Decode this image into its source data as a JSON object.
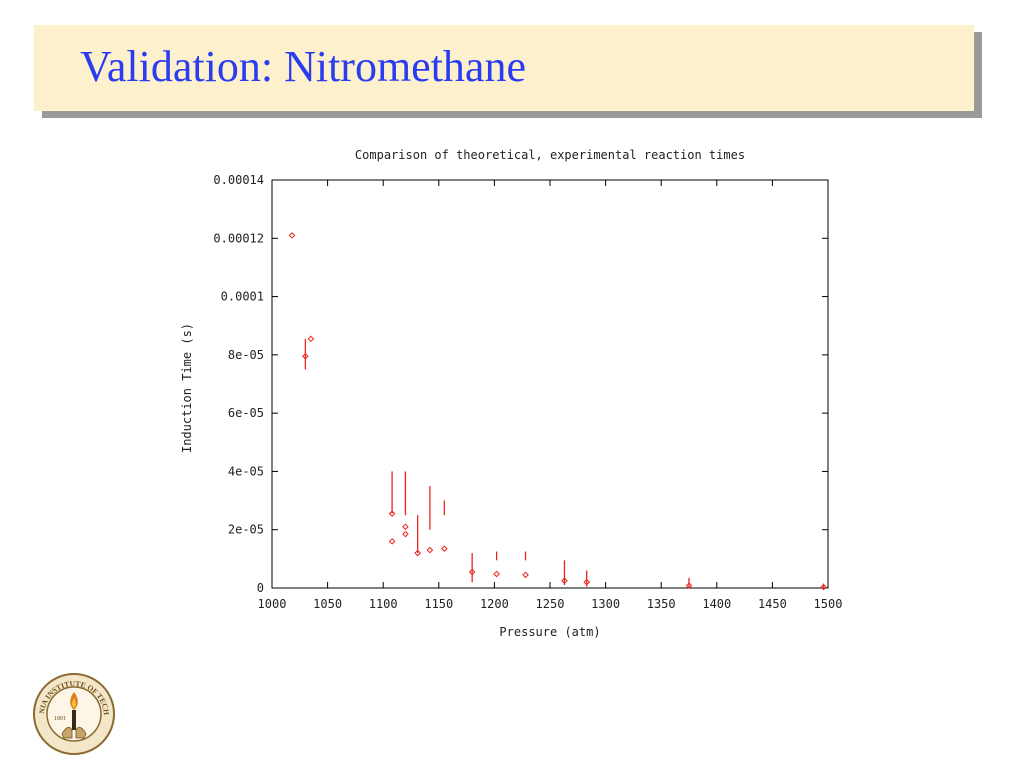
{
  "slide": {
    "title": "Validation: Nitromethane"
  },
  "chart_data": {
    "type": "scatter",
    "title": "Comparison of theoretical, experimental reaction times",
    "xlabel": "Pressure (atm)",
    "ylabel": "Induction Time (s)",
    "xlim": [
      1000,
      1500
    ],
    "ylim": [
      0,
      0.00014
    ],
    "xticks": [
      1000,
      1050,
      1100,
      1150,
      1200,
      1250,
      1300,
      1350,
      1400,
      1450,
      1500
    ],
    "xtick_labels": [
      "1000",
      "1050",
      "1100",
      "1150",
      "1200",
      "1250",
      "1300",
      "1350",
      "1400",
      "1450",
      "1500"
    ],
    "yticks": [
      0,
      2e-05,
      4e-05,
      6e-05,
      8e-05,
      0.0001,
      0.00012,
      0.00014
    ],
    "ytick_labels": [
      "0",
      "2e-05",
      "4e-05",
      "6e-05",
      "8e-05",
      "0.0001",
      "0.00012",
      "0.00014"
    ],
    "grid": false,
    "marker_color": "#e8261e",
    "points": [
      {
        "x": 1018,
        "y": 0.000121
      },
      {
        "x": 1030,
        "y": 7.95e-05
      },
      {
        "x": 1035,
        "y": 8.55e-05
      },
      {
        "x": 1108,
        "y": 2.55e-05
      },
      {
        "x": 1108,
        "y": 1.6e-05
      },
      {
        "x": 1120,
        "y": 2.1e-05
      },
      {
        "x": 1120,
        "y": 1.85e-05
      },
      {
        "x": 1131,
        "y": 1.2e-05
      },
      {
        "x": 1142,
        "y": 1.3e-05
      },
      {
        "x": 1155,
        "y": 1.35e-05
      },
      {
        "x": 1180,
        "y": 5.5e-06
      },
      {
        "x": 1202,
        "y": 4.8e-06
      },
      {
        "x": 1228,
        "y": 4.5e-06
      },
      {
        "x": 1263,
        "y": 2.5e-06
      },
      {
        "x": 1283,
        "y": 2e-06
      },
      {
        "x": 1375,
        "y": 8e-07
      },
      {
        "x": 1496,
        "y": 3e-07
      }
    ],
    "ranges": [
      {
        "x": 1030,
        "lo": 7.5e-05,
        "hi": 8.55e-05
      },
      {
        "x": 1108,
        "lo": 2.55e-05,
        "hi": 4e-05
      },
      {
        "x": 1120,
        "lo": 2.5e-05,
        "hi": 4e-05
      },
      {
        "x": 1131,
        "lo": 1.2e-05,
        "hi": 2.5e-05
      },
      {
        "x": 1142,
        "lo": 2e-05,
        "hi": 3.5e-05
      },
      {
        "x": 1155,
        "lo": 2.5e-05,
        "hi": 3e-05
      },
      {
        "x": 1180,
        "lo": 2e-06,
        "hi": 1.2e-05
      },
      {
        "x": 1202,
        "lo": 9.5e-06,
        "hi": 1.25e-05
      },
      {
        "x": 1228,
        "lo": 9.5e-06,
        "hi": 1.25e-05
      },
      {
        "x": 1263,
        "lo": 1e-06,
        "hi": 9.5e-06
      },
      {
        "x": 1283,
        "lo": 5e-07,
        "hi": 6e-06
      },
      {
        "x": 1375,
        "lo": 0.0,
        "hi": 3.5e-06
      },
      {
        "x": 1496,
        "lo": 0.0,
        "hi": 1.5e-06
      }
    ]
  },
  "logo": {
    "name": "caltech-seal-icon",
    "text": "CALIFORNIA INSTITUTE OF TECHNOLOGY",
    "year": "1891"
  }
}
